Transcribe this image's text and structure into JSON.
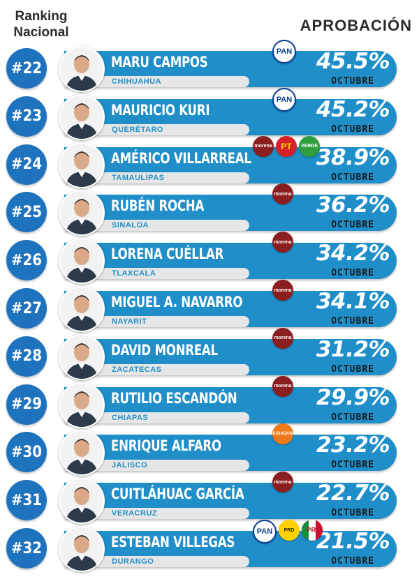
{
  "header": {
    "left_title": "Ranking Nacional",
    "right_title": "APROBACIÓN"
  },
  "colors": {
    "bar": "#1f8ec9",
    "badge": "#1f73be",
    "state_bar": "#e6e6e6",
    "text_dark": "#2b2b2b"
  },
  "chart_data": {
    "type": "bar",
    "title": "APROBACIÓN",
    "period": "OCTUBRE",
    "categories": [
      "MARU CAMPOS",
      "MAURICIO KURI",
      "AMÉRICO VILLARREAL",
      "RUBÉN ROCHA",
      "LORENA CUÉLLAR",
      "MIGUEL A. NAVARRO",
      "DAVID MONREAL",
      "RUTILIO ESCANDÓN",
      "ENRIQUE ALFARO",
      "CUITLÁHUAC GARCÍA",
      "ESTEBAN VILLEGAS"
    ],
    "values": [
      45.5,
      45.2,
      38.9,
      36.2,
      34.2,
      34.1,
      31.2,
      29.9,
      23.2,
      22.7,
      21.5
    ],
    "rows": [
      {
        "rank": "#22",
        "name": "MARU CAMPOS",
        "state": "CHIHUAHUA",
        "pct": "45.5%",
        "month": "OCTUBRE",
        "parties": [
          "PAN"
        ]
      },
      {
        "rank": "#23",
        "name": "MAURICIO KURI",
        "state": "QUERÉTARO",
        "pct": "45.2%",
        "month": "OCTUBRE",
        "parties": [
          "PAN"
        ]
      },
      {
        "rank": "#24",
        "name": "AMÉRICO VILLARREAL",
        "state": "TAMAULIPAS",
        "pct": "38.9%",
        "month": "OCTUBRE",
        "parties": [
          "morena",
          "PT",
          "VERDE"
        ]
      },
      {
        "rank": "#25",
        "name": "RUBÉN ROCHA",
        "state": "SINALOA",
        "pct": "36.2%",
        "month": "OCTUBRE",
        "parties": [
          "morena"
        ]
      },
      {
        "rank": "#26",
        "name": "LORENA CUÉLLAR",
        "state": "TLAXCALA",
        "pct": "34.2%",
        "month": "OCTUBRE",
        "parties": [
          "morena"
        ]
      },
      {
        "rank": "#27",
        "name": "MIGUEL A. NAVARRO",
        "state": "NAYARIT",
        "pct": "34.1%",
        "month": "OCTUBRE",
        "parties": [
          "morena"
        ]
      },
      {
        "rank": "#28",
        "name": "DAVID MONREAL",
        "state": "ZACATECAS",
        "pct": "31.2%",
        "month": "OCTUBRE",
        "parties": [
          "morena"
        ]
      },
      {
        "rank": "#29",
        "name": "RUTILIO ESCANDÓN",
        "state": "CHIAPAS",
        "pct": "29.9%",
        "month": "OCTUBRE",
        "parties": [
          "morena"
        ]
      },
      {
        "rank": "#30",
        "name": "ENRIQUE ALFARO",
        "state": "JALISCO",
        "pct": "23.2%",
        "month": "OCTUBRE",
        "parties": [
          "CIUDADANO"
        ]
      },
      {
        "rank": "#31",
        "name": "CUITLÁHUAC GARCÍA",
        "state": "VERACRUZ",
        "pct": "22.7%",
        "month": "OCTUBRE",
        "parties": [
          "morena"
        ]
      },
      {
        "rank": "#32",
        "name": "ESTEBAN VILLEGAS",
        "state": "DURANGO",
        "pct": "21.5%",
        "month": "OCTUBRE",
        "parties": [
          "PAN",
          "PRD",
          "PRI"
        ]
      }
    ]
  }
}
